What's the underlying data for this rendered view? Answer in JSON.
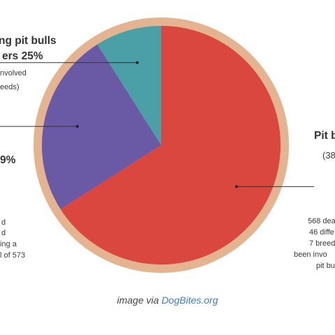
{
  "chart_data": {
    "type": "pie",
    "slices": [
      {
        "label_lines": [
          "Pit b"
        ],
        "detail_lines": [
          "(38"
        ],
        "value": 66,
        "color": "#d9473f"
      },
      {
        "label_lines": [
          "ng pit bulls",
          "ers 25%"
        ],
        "detail_lines": [
          "nvolved",
          "eeds)"
        ],
        "value": 25,
        "color": "#6a5aa6"
      },
      {
        "label_lines": [
          "9%"
        ],
        "detail_lines": [],
        "value": 9,
        "color": "#4ba0a8"
      }
    ],
    "rim_color": "#e3b48f",
    "notes": {
      "right": [
        "568 dea",
        "46 diffe",
        "7 breed",
        "been invo",
        "pit bu"
      ],
      "left": [
        "d",
        "d",
        "ing a",
        "l of 573"
      ]
    }
  },
  "caption": {
    "prefix": "image via ",
    "link_text": "DogBites.org"
  }
}
